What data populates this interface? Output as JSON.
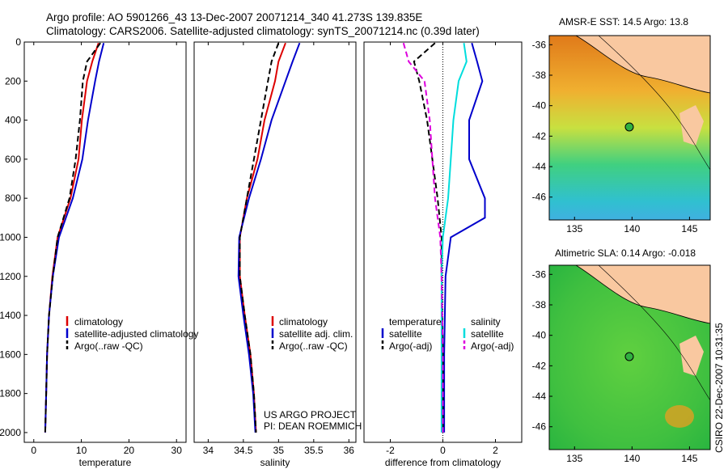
{
  "header": {
    "line1": "Argo profile: AO 5901266_43 13-Dec-2007 20071214_340 41.273S 139.835E",
    "line2": "Climatology: CARS2006. Satellite-adjusted climatology: synTS_20071214.nc (0.39d later)"
  },
  "footer": {
    "project": "US ARGO PROJECT",
    "pi": "PI: DEAN ROEMMICH",
    "stamp": "CSIRO 22-Dec-2007 10:31:35"
  },
  "chart_data": [
    {
      "type": "line",
      "xlabel": "temperature",
      "ylabel": "",
      "xlim": [
        -2,
        32
      ],
      "ylim": [
        2050,
        0
      ],
      "xticks": [
        0,
        10,
        20,
        30
      ],
      "yticks": [
        0,
        200,
        400,
        600,
        800,
        1000,
        1200,
        1400,
        1600,
        1800,
        2000
      ],
      "legend": [
        "climatology",
        "satellite-adjusted climatology",
        "Argo(..raw -QC)"
      ],
      "series": [
        {
          "name": "climatology",
          "color": "#dd0000",
          "style": "solid",
          "depth": [
            5,
            100,
            200,
            400,
            600,
            800,
            1000,
            1200,
            1400,
            1600,
            1800,
            2000
          ],
          "values": [
            13.6,
            12.3,
            11.2,
            10.1,
            9.4,
            7.7,
            5.0,
            3.9,
            3.2,
            2.8,
            2.6,
            2.4
          ]
        },
        {
          "name": "satellite-adjusted climatology",
          "color": "#0000cc",
          "style": "solid",
          "depth": [
            5,
            100,
            200,
            400,
            600,
            800,
            1000,
            1200,
            1400,
            1600,
            1800,
            2000
          ],
          "values": [
            14.7,
            13.7,
            12.9,
            11.4,
            10.2,
            8.2,
            5.3,
            4.0,
            3.2,
            2.8,
            2.6,
            2.4
          ]
        },
        {
          "name": "Argo(..raw -QC)",
          "color": "#000000",
          "style": "dashed",
          "depth": [
            5,
            100,
            200,
            400,
            600,
            800,
            1000,
            1200,
            1400,
            1600,
            1800,
            2000
          ],
          "values": [
            14.0,
            11.2,
            10.3,
            9.7,
            8.8,
            7.5,
            5.0,
            4.0,
            3.2,
            2.8,
            2.6,
            2.4
          ]
        }
      ]
    },
    {
      "type": "line",
      "xlabel": "salinity",
      "ylabel": "",
      "xlim": [
        33.8,
        36.1
      ],
      "ylim": [
        2050,
        0
      ],
      "xticks": [
        34,
        34.5,
        35,
        35.5,
        36
      ],
      "legend": [
        "climatology",
        "satellite adj. clim.",
        "Argo(..raw -QC)"
      ],
      "series": [
        {
          "name": "climatology",
          "color": "#dd0000",
          "style": "solid",
          "depth": [
            5,
            100,
            200,
            400,
            600,
            800,
            1000,
            1200,
            1400,
            1600,
            1800,
            2000
          ],
          "values": [
            35.1,
            35.0,
            34.95,
            34.8,
            34.7,
            34.55,
            34.45,
            34.45,
            34.52,
            34.6,
            34.65,
            34.68
          ]
        },
        {
          "name": "satellite adj. clim.",
          "color": "#0000cc",
          "style": "solid",
          "depth": [
            5,
            100,
            200,
            400,
            600,
            800,
            1000,
            1200,
            1400,
            1600,
            1800,
            2000
          ],
          "values": [
            35.3,
            35.2,
            35.1,
            34.9,
            34.75,
            34.58,
            34.44,
            34.43,
            34.5,
            34.58,
            34.64,
            34.67
          ]
        },
        {
          "name": "Argo(..raw -QC)",
          "color": "#000000",
          "style": "dashed",
          "depth": [
            5,
            100,
            200,
            400,
            600,
            800,
            1000,
            1200,
            1400,
            1600,
            1800,
            2000
          ],
          "values": [
            35.0,
            34.9,
            34.85,
            34.75,
            34.65,
            34.55,
            34.45,
            34.45,
            34.52,
            34.6,
            34.65,
            34.68
          ]
        }
      ]
    },
    {
      "type": "line",
      "xlabel": "difference from climatology",
      "ylabel": "",
      "xlim": [
        -3,
        3
      ],
      "ylim": [
        2050,
        0
      ],
      "xticks": [
        -2,
        0,
        2
      ],
      "legend": [
        "temperature",
        "satellite",
        "Argo(-adj)",
        "salinity",
        "satellite",
        "Argo(-adj)"
      ],
      "series": [
        {
          "name": "temperature satellite",
          "color": "#0000cc",
          "style": "solid",
          "depth": [
            5,
            100,
            200,
            400,
            600,
            800,
            900,
            1000,
            1200,
            1600,
            2000
          ],
          "values": [
            1.1,
            1.3,
            1.5,
            1.0,
            1.0,
            1.6,
            1.6,
            0.3,
            0.1,
            0.05,
            0.05
          ]
        },
        {
          "name": "temperature Argo(-adj)",
          "color": "#000000",
          "style": "dashed",
          "depth": [
            5,
            100,
            200,
            400,
            600,
            800,
            1000,
            1200,
            1600,
            2000
          ],
          "values": [
            -0.3,
            -1.1,
            -0.9,
            -0.6,
            -0.4,
            -0.2,
            -0.05,
            -0.05,
            0,
            0
          ]
        },
        {
          "name": "salinity satellite",
          "color": "#00dddd",
          "style": "solid",
          "depth": [
            5,
            100,
            200,
            400,
            600,
            800,
            1000,
            1200,
            1600,
            2000
          ],
          "values": [
            0.8,
            0.9,
            0.6,
            0.4,
            0.3,
            0.2,
            0.0,
            -0.05,
            -0.05,
            -0.05
          ]
        },
        {
          "name": "salinity Argo(-adj)",
          "color": "#dd00dd",
          "style": "dashed",
          "depth": [
            5,
            100,
            200,
            400,
            600,
            800,
            1000,
            1200,
            1600,
            2000
          ],
          "values": [
            -1.5,
            -1.3,
            -0.7,
            -0.5,
            -0.4,
            -0.3,
            -0.1,
            -0.05,
            0,
            0
          ]
        }
      ]
    },
    {
      "type": "heatmap",
      "title": "AMSR-E SST: 14.5 Argo: 13.8",
      "xticks": [
        135,
        140,
        145
      ],
      "yticks": [
        -36,
        -38,
        -40,
        -42,
        -44,
        -46
      ],
      "marker": {
        "lon": 139.8,
        "lat": -41.3
      }
    },
    {
      "type": "heatmap",
      "title": "Altimetric SLA: 0.14 Argo: -0.018",
      "xticks": [
        135,
        140,
        145
      ],
      "yticks": [
        -36,
        -38,
        -40,
        -42,
        -44,
        -46
      ],
      "marker": {
        "lon": 139.8,
        "lat": -41.3
      }
    }
  ]
}
